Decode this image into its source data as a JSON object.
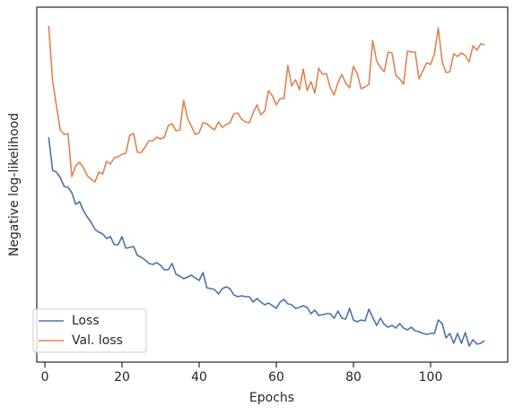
{
  "chart_data": {
    "type": "line",
    "xlabel": "Epochs",
    "ylabel": "Negative log-likelihood",
    "x": [
      1,
      2,
      3,
      4,
      5,
      6,
      7,
      8,
      9,
      10,
      11,
      12,
      13,
      14,
      15,
      16,
      17,
      18,
      19,
      20,
      21,
      22,
      23,
      24,
      25,
      26,
      27,
      28,
      29,
      30,
      31,
      32,
      33,
      34,
      35,
      36,
      37,
      38,
      39,
      40,
      41,
      42,
      43,
      44,
      45,
      46,
      47,
      48,
      49,
      50,
      51,
      52,
      53,
      54,
      55,
      56,
      57,
      58,
      59,
      60,
      61,
      62,
      63,
      64,
      65,
      66,
      67,
      68,
      69,
      70,
      71,
      72,
      73,
      74,
      75,
      76,
      77,
      78,
      79,
      80,
      81,
      82,
      83,
      84,
      85,
      86,
      87,
      88,
      89,
      90,
      91,
      92,
      93,
      94,
      95,
      96,
      97,
      98,
      99,
      100,
      101,
      102,
      103,
      104,
      105,
      106,
      107,
      108,
      109,
      110,
      111,
      112,
      113,
      114
    ],
    "series": [
      {
        "name": "Loss",
        "color": "#4c72b0",
        "values": [
          251,
          214,
          212,
          206,
          196,
          195,
          189,
          176,
          179,
          169,
          162,
          156,
          148,
          145,
          143,
          138,
          140,
          131,
          131,
          140,
          127,
          128,
          129,
          119,
          117,
          114,
          110,
          109,
          111,
          108,
          103,
          103,
          110,
          98,
          96,
          93,
          95,
          97,
          94,
          91,
          100,
          83,
          82,
          81,
          76,
          82,
          84,
          82,
          75,
          73,
          74,
          73,
          73,
          67,
          71,
          67,
          64,
          66,
          63,
          60,
          67,
          70,
          65,
          64,
          60,
          61,
          63,
          61,
          54,
          58,
          52,
          53,
          54,
          54,
          49,
          57,
          49,
          48,
          60,
          47,
          45,
          47,
          46,
          59,
          50,
          41,
          49,
          42,
          39,
          41,
          38,
          43,
          38,
          36,
          39,
          35,
          34,
          32,
          31,
          32,
          32,
          47,
          43,
          27,
          32,
          21,
          32,
          21,
          33,
          18,
          25,
          20,
          21,
          24
        ]
      },
      {
        "name": "Val. loss",
        "color": "#dd8452",
        "values": [
          375,
          314,
          286,
          259,
          254,
          255,
          207,
          219,
          223,
          217,
          208,
          204,
          201,
          212,
          210,
          224,
          221,
          228,
          229,
          232,
          233,
          253,
          255,
          234,
          234,
          240,
          247,
          247,
          251,
          249,
          251,
          264,
          266,
          258,
          259,
          292,
          272,
          263,
          254,
          256,
          267,
          266,
          262,
          259,
          268,
          262,
          265,
          267,
          277,
          278,
          271,
          268,
          267,
          278,
          287,
          276,
          280,
          303,
          297,
          287,
          294,
          294,
          331,
          308,
          315,
          304,
          327,
          303,
          313,
          300,
          328,
          321,
          322,
          306,
          298,
          312,
          321,
          311,
          306,
          330,
          322,
          305,
          307,
          310,
          359,
          336,
          329,
          324,
          346,
          345,
          320,
          316,
          310,
          347,
          346,
          346,
          316,
          325,
          334,
          332,
          344,
          373,
          335,
          323,
          324,
          344,
          341,
          345,
          342,
          335,
          353,
          348,
          355,
          354
        ]
      }
    ],
    "xlim": [
      -2.1,
      120
    ],
    "xticks": [
      0,
      20,
      40,
      60,
      80,
      100
    ],
    "ylim": [
      0,
      396
    ],
    "legend": "lower left"
  }
}
